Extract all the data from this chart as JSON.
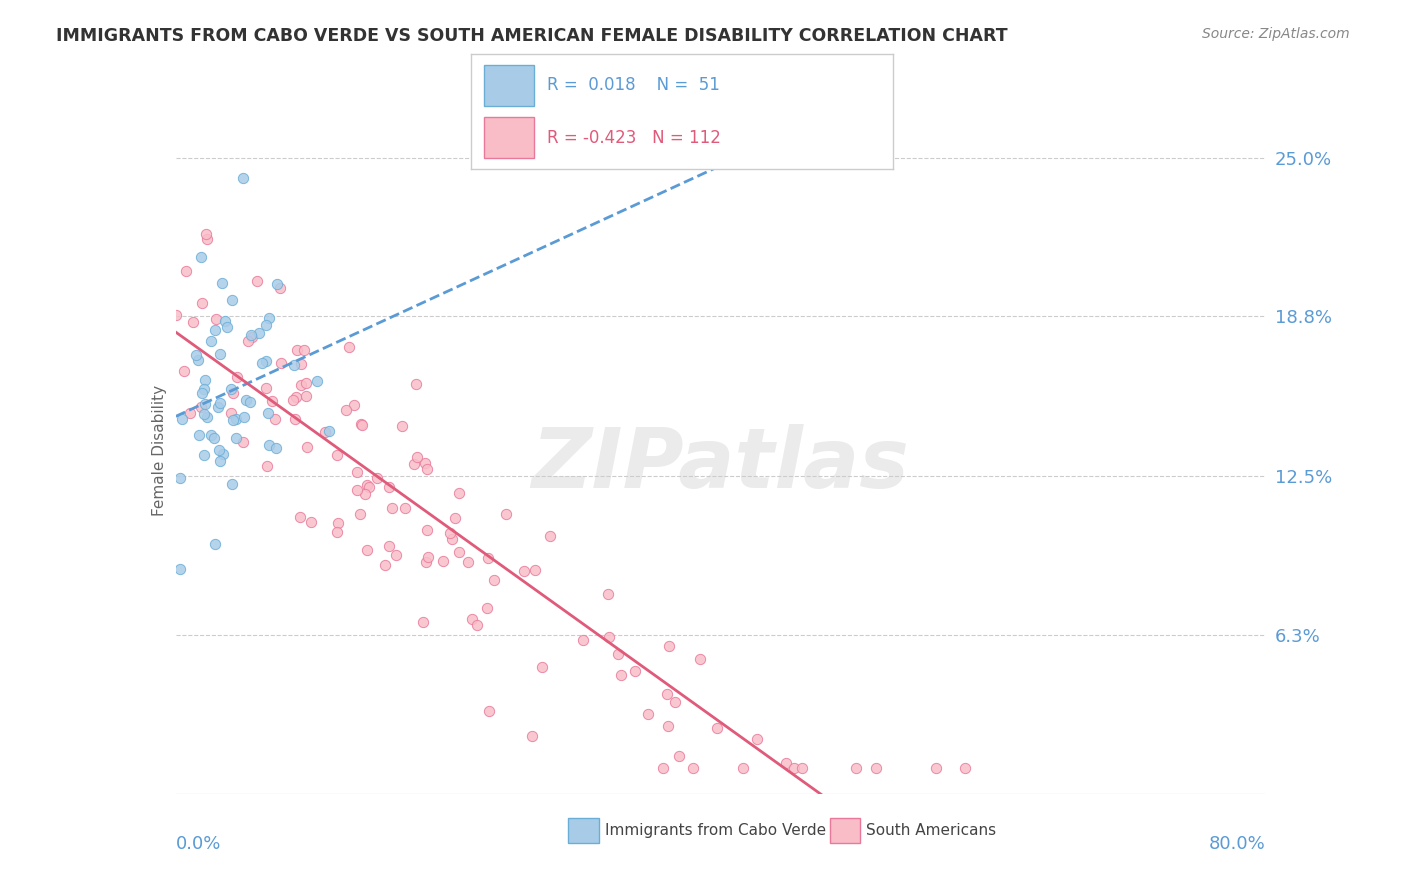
{
  "title": "IMMIGRANTS FROM CABO VERDE VS SOUTH AMERICAN FEMALE DISABILITY CORRELATION CHART",
  "source": "Source: ZipAtlas.com",
  "ylabel": "Female Disability",
  "x_range": [
    0.0,
    0.8
  ],
  "y_range": [
    0.0,
    0.27
  ],
  "cabo_verde_R": 0.018,
  "cabo_verde_N": 51,
  "south_american_R": -0.423,
  "south_american_N": 112,
  "cabo_verde_color": "#a8cce8",
  "south_american_color": "#f9bdc8",
  "cabo_verde_edge_color": "#6aaed6",
  "south_american_edge_color": "#e8799a",
  "cabo_verde_line_color": "#5b9bd5",
  "south_american_line_color": "#e05a7a",
  "background_color": "#ffffff",
  "title_color": "#333333",
  "axis_label_color": "#5b9bd5",
  "grid_color": "#cccccc",
  "y_ticks": [
    0.0625,
    0.125,
    0.188,
    0.25
  ],
  "y_tick_labels": [
    "6.3%",
    "12.5%",
    "18.8%",
    "25.0%"
  ]
}
